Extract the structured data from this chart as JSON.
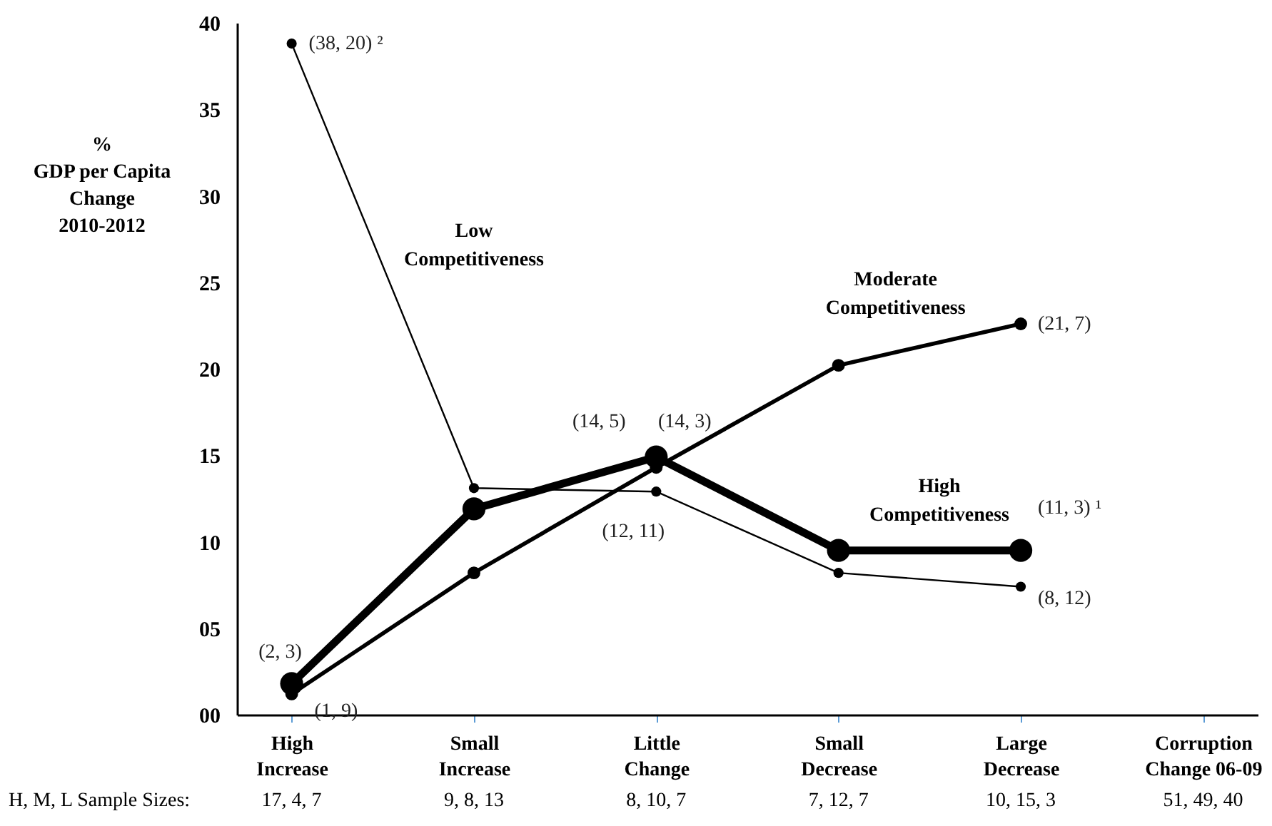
{
  "chart_data": {
    "type": "line",
    "ylabel": "%\nGDP per Capita\nChange\n2010-2012",
    "categories": [
      "High Increase",
      "Small Increase",
      "Little Change",
      "Small Decrease",
      "Large Decrease",
      "Corruption Change 06-09"
    ],
    "series": [
      {
        "name": "Low Competitiveness",
        "color": "#000000",
        "values": [
          38.8,
          13.1,
          12.9,
          8.2,
          7.4,
          null
        ],
        "value_labels": [
          "(38, 20) ²",
          null,
          "(12, 11)",
          null,
          "(8, 12)",
          null
        ]
      },
      {
        "name": "Moderate Competitiveness",
        "color": "#000000",
        "values": [
          1.2,
          8.2,
          14.3,
          20.2,
          22.6,
          null
        ],
        "value_labels": [
          "(1, 9)",
          null,
          "(14, 3)",
          null,
          "(21, 7)",
          null
        ]
      },
      {
        "name": "High Competitiveness",
        "color": "#000000",
        "values": [
          1.8,
          11.9,
          14.9,
          9.5,
          9.5,
          null
        ],
        "value_labels": [
          "(2, 3)",
          null,
          "(14, 5)",
          null,
          "(11, 3) ¹",
          null
        ]
      }
    ],
    "ylim": [
      0,
      40
    ],
    "yticks": [
      {
        "value": 0,
        "label": "00"
      },
      {
        "value": 5,
        "label": "05"
      },
      10,
      15,
      20,
      25,
      30,
      35,
      40
    ],
    "grid": false,
    "marker": "circle",
    "line_style": "solid",
    "annotations": [
      "H, M, L Sample Sizes:",
      "17, 4, 7",
      "9, 8, 13",
      "8, 10, 7",
      "7, 12, 7",
      "10, 15, 3",
      "51, 49, 40"
    ]
  }
}
